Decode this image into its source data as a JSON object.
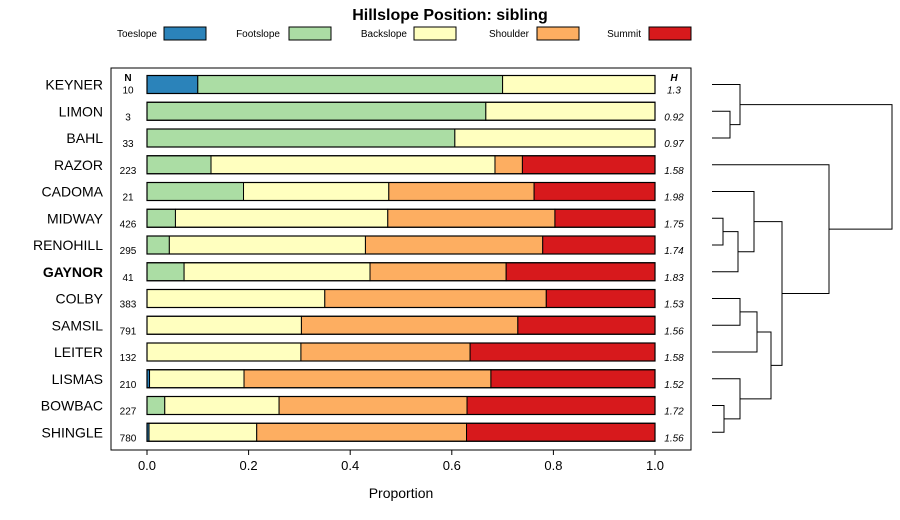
{
  "chart_data": {
    "type": "bar",
    "stacked": "horizontal-proportion",
    "title": "Hillslope Position: sibling",
    "xlabel": "Proportion",
    "ylabel": "",
    "xlim": [
      0,
      1
    ],
    "x_ticks": [
      "0.0",
      "0.2",
      "0.4",
      "0.6",
      "0.8",
      "1.0"
    ],
    "legend_position": "top",
    "n_header": "N",
    "h_header": "H",
    "highlighted": "GAYNOR",
    "classes": [
      {
        "name": "Toeslope",
        "color": "#2b83ba"
      },
      {
        "name": "Footslope",
        "color": "#abdda4"
      },
      {
        "name": "Backslope",
        "color": "#ffffbf"
      },
      {
        "name": "Shoulder",
        "color": "#fdae61"
      },
      {
        "name": "Summit",
        "color": "#d7191c"
      }
    ],
    "series": [
      {
        "name": "KEYNER",
        "n": "10",
        "h": "1.3",
        "values": [
          0.1,
          0.6,
          0.3,
          0.0,
          0.0
        ]
      },
      {
        "name": "LIMON",
        "n": "3",
        "h": "0.92",
        "values": [
          0.0,
          0.667,
          0.333,
          0.0,
          0.0
        ]
      },
      {
        "name": "BAHL",
        "n": "33",
        "h": "0.97",
        "values": [
          0.0,
          0.606,
          0.394,
          0.0,
          0.0
        ]
      },
      {
        "name": "RAZOR",
        "n": "223",
        "h": "1.58",
        "values": [
          0.0,
          0.126,
          0.559,
          0.054,
          0.261
        ]
      },
      {
        "name": "CADOMA",
        "n": "21",
        "h": "1.98",
        "values": [
          0.0,
          0.19,
          0.286,
          0.286,
          0.238
        ]
      },
      {
        "name": "MIDWAY",
        "n": "426",
        "h": "1.75",
        "values": [
          0.0,
          0.056,
          0.418,
          0.329,
          0.197
        ]
      },
      {
        "name": "RENOHILL",
        "n": "295",
        "h": "1.74",
        "values": [
          0.0,
          0.044,
          0.386,
          0.349,
          0.221
        ]
      },
      {
        "name": "GAYNOR",
        "n": "41",
        "h": "1.83",
        "values": [
          0.0,
          0.073,
          0.366,
          0.268,
          0.293
        ]
      },
      {
        "name": "COLBY",
        "n": "383",
        "h": "1.53",
        "values": [
          0.0,
          0.0,
          0.35,
          0.436,
          0.214
        ]
      },
      {
        "name": "SAMSIL",
        "n": "791",
        "h": "1.56",
        "values": [
          0.0,
          0.0,
          0.304,
          0.426,
          0.27
        ]
      },
      {
        "name": "LEITER",
        "n": "132",
        "h": "1.58",
        "values": [
          0.0,
          0.0,
          0.303,
          0.333,
          0.364
        ]
      },
      {
        "name": "LISMAS",
        "n": "210",
        "h": "1.52",
        "values": [
          0.005,
          0.0,
          0.186,
          0.486,
          0.323
        ]
      },
      {
        "name": "BOWBAC",
        "n": "227",
        "h": "1.72",
        "values": [
          0.0,
          0.035,
          0.225,
          0.37,
          0.37
        ]
      },
      {
        "name": "SHINGLE",
        "n": "780",
        "h": "1.56",
        "values": [
          0.004,
          0.0,
          0.212,
          0.413,
          0.371
        ]
      }
    ]
  }
}
